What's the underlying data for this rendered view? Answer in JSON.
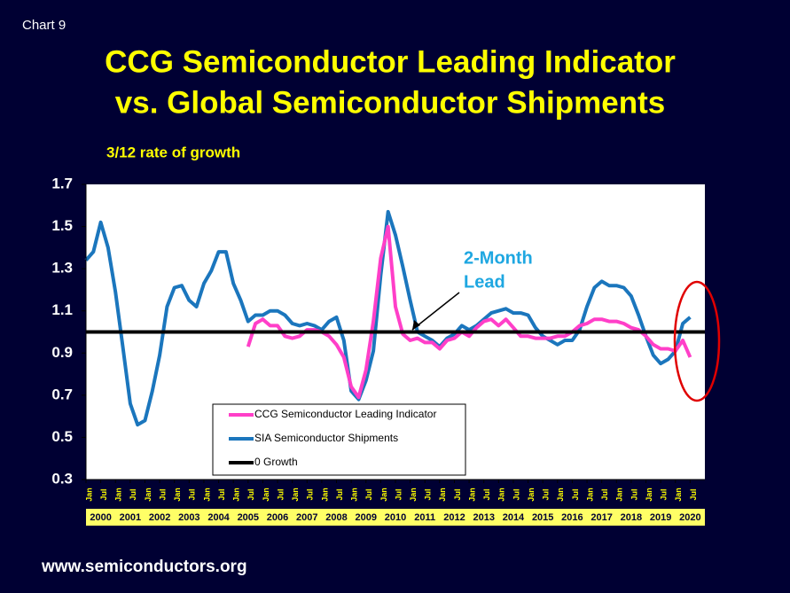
{
  "chart_data": {
    "type": "line",
    "label": "Chart 9",
    "title": [
      "CCG Semiconductor Leading Indicator",
      "vs. Global Semiconductor Shipments"
    ],
    "y_label": "3/12 rate of growth",
    "source": "www.semiconductors.org",
    "annotation": [
      "2-Month",
      "Lead"
    ],
    "x": [
      2000,
      2000.25,
      2000.5,
      2000.75,
      2001,
      2001.25,
      2001.5,
      2001.75,
      2002,
      2002.25,
      2002.5,
      2002.75,
      2003,
      2003.25,
      2003.5,
      2003.75,
      2004,
      2004.25,
      2004.5,
      2004.75,
      2005,
      2005.25,
      2005.5,
      2005.75,
      2006,
      2006.25,
      2006.5,
      2006.75,
      2007,
      2007.25,
      2007.5,
      2007.75,
      2008,
      2008.25,
      2008.5,
      2008.75,
      2009,
      2009.25,
      2009.5,
      2009.75,
      2010,
      2010.25,
      2010.5,
      2010.75,
      2011,
      2011.25,
      2011.5,
      2011.75,
      2012,
      2012.25,
      2012.5,
      2012.75,
      2013,
      2013.25,
      2013.5,
      2013.75,
      2014,
      2014.25,
      2014.5,
      2014.75,
      2015,
      2015.25,
      2015.5,
      2015.75,
      2016,
      2016.25,
      2016.5,
      2016.75,
      2017,
      2017.25,
      2017.5,
      2017.75,
      2018,
      2018.25,
      2018.5,
      2018.75,
      2019,
      2019.25,
      2019.5,
      2019.75,
      2020,
      2020.25,
      2020.5
    ],
    "series": [
      {
        "name": "CCG Semiconductor Leading Indicator",
        "color": "#ff3fc8",
        "values": [
          null,
          null,
          null,
          null,
          null,
          null,
          null,
          null,
          null,
          null,
          null,
          null,
          null,
          null,
          null,
          null,
          null,
          null,
          null,
          null,
          null,
          null,
          0.93,
          1.04,
          1.06,
          1.03,
          1.03,
          0.98,
          0.97,
          0.98,
          1.01,
          1.01,
          1.0,
          0.98,
          0.94,
          0.88,
          0.74,
          0.69,
          0.82,
          1.05,
          1.35,
          1.5,
          1.12,
          0.99,
          0.96,
          0.97,
          0.95,
          0.95,
          0.92,
          0.96,
          0.97,
          1.0,
          0.98,
          1.02,
          1.05,
          1.06,
          1.03,
          1.06,
          1.02,
          0.98,
          0.98,
          0.97,
          0.97,
          0.97,
          0.98,
          0.98,
          1.0,
          1.03,
          1.04,
          1.06,
          1.06,
          1.05,
          1.05,
          1.04,
          1.02,
          1.01,
          0.98,
          0.94,
          0.92,
          0.92,
          0.91,
          0.96,
          0.88
        ]
      },
      {
        "name": "SIA Semiconductor Shipments",
        "color": "#1b76bd",
        "values": [
          1.34,
          1.38,
          1.52,
          1.4,
          1.19,
          0.93,
          0.66,
          0.56,
          0.58,
          0.72,
          0.89,
          1.12,
          1.21,
          1.22,
          1.15,
          1.12,
          1.23,
          1.29,
          1.38,
          1.38,
          1.23,
          1.15,
          1.05,
          1.08,
          1.08,
          1.1,
          1.1,
          1.08,
          1.04,
          1.03,
          1.04,
          1.03,
          1.01,
          1.05,
          1.07,
          0.96,
          0.72,
          0.68,
          0.77,
          0.91,
          1.27,
          1.57,
          1.46,
          1.31,
          1.15,
          1.0,
          0.98,
          0.96,
          0.93,
          0.97,
          0.99,
          1.03,
          1.01,
          1.03,
          1.06,
          1.09,
          1.1,
          1.11,
          1.09,
          1.09,
          1.08,
          1.02,
          0.98,
          0.96,
          0.94,
          0.96,
          0.96,
          1.01,
          1.12,
          1.21,
          1.24,
          1.22,
          1.22,
          1.21,
          1.17,
          1.08,
          0.98,
          0.89,
          0.85,
          0.87,
          0.91,
          1.04,
          1.07
        ]
      }
    ],
    "reference_line": {
      "name": "0 Growth",
      "value": 1.0,
      "color": "#000000"
    },
    "xlim": [
      2000,
      2021
    ],
    "xticks": [
      {
        "value": 2000,
        "label": "Jan"
      },
      {
        "value": 2000.5,
        "label": "Jul"
      },
      {
        "value": 2001,
        "label": "Jan"
      },
      {
        "value": 2001.5,
        "label": "Jul"
      },
      {
        "value": 2002,
        "label": "Jan"
      },
      {
        "value": 2002.5,
        "label": "Jul"
      },
      {
        "value": 2003,
        "label": "Jan"
      },
      {
        "value": 2003.5,
        "label": "Jul"
      },
      {
        "value": 2004,
        "label": "Jan"
      },
      {
        "value": 2004.5,
        "label": "Jul"
      },
      {
        "value": 2005,
        "label": "Jan"
      },
      {
        "value": 2005.5,
        "label": "Jul"
      },
      {
        "value": 2006,
        "label": "Jan"
      },
      {
        "value": 2006.5,
        "label": "Jul"
      },
      {
        "value": 2007,
        "label": "Jan"
      },
      {
        "value": 2007.5,
        "label": "Jul"
      },
      {
        "value": 2008,
        "label": "Jan"
      },
      {
        "value": 2008.5,
        "label": "Jul"
      },
      {
        "value": 2009,
        "label": "Jan"
      },
      {
        "value": 2009.5,
        "label": "Jul"
      },
      {
        "value": 2010,
        "label": "Jan"
      },
      {
        "value": 2010.5,
        "label": "Jul"
      },
      {
        "value": 2011,
        "label": "Jan"
      },
      {
        "value": 2011.5,
        "label": "Jul"
      },
      {
        "value": 2012,
        "label": "Jan"
      },
      {
        "value": 2012.5,
        "label": "Jul"
      },
      {
        "value": 2013,
        "label": "Jan"
      },
      {
        "value": 2013.5,
        "label": "Jul"
      },
      {
        "value": 2014,
        "label": "Jan"
      },
      {
        "value": 2014.5,
        "label": "Jul"
      },
      {
        "value": 2015,
        "label": "Jan"
      },
      {
        "value": 2015.5,
        "label": "Jul"
      },
      {
        "value": 2016,
        "label": "Jan"
      },
      {
        "value": 2016.5,
        "label": "Jul"
      },
      {
        "value": 2017,
        "label": "Jan"
      },
      {
        "value": 2017.5,
        "label": "Jul"
      },
      {
        "value": 2018,
        "label": "Jan"
      },
      {
        "value": 2018.5,
        "label": "Jul"
      },
      {
        "value": 2019,
        "label": "Jan"
      },
      {
        "value": 2019.5,
        "label": "Jul"
      },
      {
        "value": 2020,
        "label": "Jan"
      },
      {
        "value": 2020.5,
        "label": "Jul"
      }
    ],
    "year_labels": [
      "2000",
      "2001",
      "2002",
      "2003",
      "2004",
      "2005",
      "2006",
      "2007",
      "2008",
      "2009",
      "2010",
      "2011",
      "2012",
      "2013",
      "2014",
      "2015",
      "2016",
      "2017",
      "2018",
      "2019",
      "2020"
    ],
    "ylim": [
      0.3,
      1.7
    ],
    "yticks": [
      0.3,
      0.5,
      0.7,
      0.9,
      1.1,
      1.3,
      1.5,
      1.7
    ],
    "grid": false,
    "legend": "bottom-left"
  }
}
